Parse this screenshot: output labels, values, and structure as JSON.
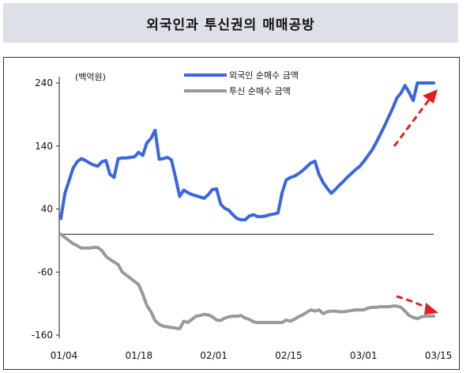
{
  "chart_data": {
    "type": "line",
    "title": "외국인과 투신권의 매매공방",
    "unit_label": "(백억원)",
    "x_tick_labels": [
      "01/04",
      "01/18",
      "02/01",
      "02/15",
      "03/01",
      "03/15"
    ],
    "y_ticks": [
      240,
      140,
      40,
      -60,
      -160
    ],
    "ylim": [
      -160,
      240
    ],
    "zero_line": true,
    "grid": false,
    "legend_position": "top-center",
    "series": [
      {
        "name": "외국인 순매수 금액",
        "color": "#3a66e0",
        "values": [
          25,
          65,
          85,
          105,
          115,
          120,
          117,
          113,
          110,
          108,
          115,
          117,
          95,
          90,
          120,
          121,
          121,
          122,
          123,
          130,
          125,
          145,
          152,
          165,
          119,
          120,
          122,
          118,
          90,
          60,
          70,
          66,
          63,
          61,
          59,
          57,
          63,
          71,
          72,
          48,
          41,
          38,
          31,
          25,
          23,
          23,
          29,
          31,
          28,
          28,
          29,
          31,
          32,
          34,
          66,
          86,
          90,
          92,
          96,
          101,
          107,
          113,
          116,
          95,
          82,
          73,
          65,
          71,
          78,
          84,
          91,
          97,
          103,
          108,
          116,
          125,
          134,
          146,
          159,
          172,
          186,
          200,
          216,
          224,
          236,
          225,
          212,
          240,
          240,
          240,
          240,
          240
        ]
      },
      {
        "name": "투신 순매수 금액",
        "color": "#999999",
        "values": [
          0,
          -5,
          -10,
          -15,
          -18,
          -22,
          -22,
          -22,
          -21,
          -21,
          -26,
          -35,
          -40,
          -44,
          -48,
          -60,
          -65,
          -70,
          -75,
          -80,
          -95,
          -113,
          -123,
          -137,
          -143,
          -146,
          -147,
          -148,
          -149,
          -150,
          -138,
          -140,
          -135,
          -130,
          -129,
          -127,
          -128,
          -131,
          -136,
          -137,
          -133,
          -131,
          -130,
          -130,
          -129,
          -133,
          -135,
          -139,
          -140,
          -140,
          -140,
          -140,
          -140,
          -140,
          -140,
          -136,
          -138,
          -135,
          -131,
          -128,
          -124,
          -120,
          -122,
          -120,
          -126,
          -123,
          -122,
          -122,
          -123,
          -123,
          -122,
          -121,
          -120,
          -120,
          -120,
          -117,
          -116,
          -116,
          -115,
          -115,
          -115,
          -114,
          -114,
          -116,
          -122,
          -129,
          -132,
          -134,
          -131,
          -130,
          -130,
          -130
        ]
      }
    ],
    "annotations": [
      "red-dashed-arrow-up",
      "red-dashed-arrow-right"
    ],
    "annotation_color": "#e02020"
  }
}
